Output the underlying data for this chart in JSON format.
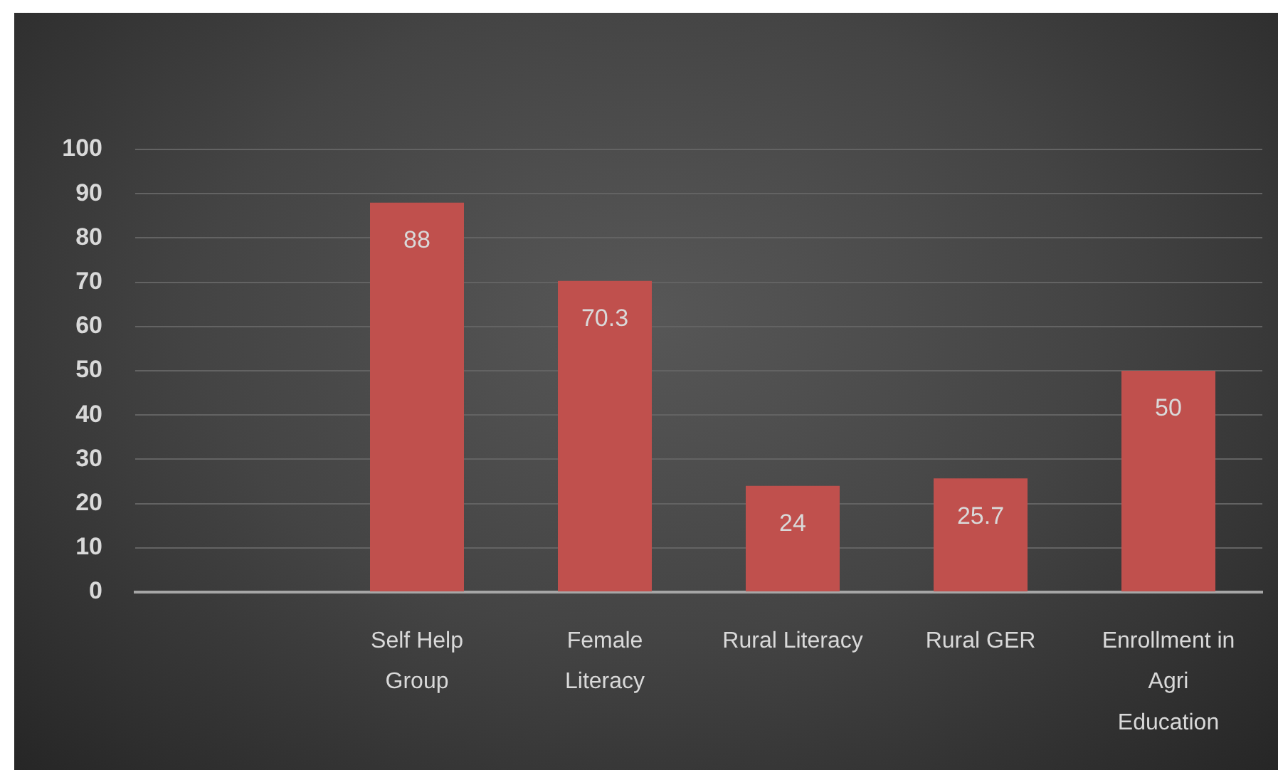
{
  "chart_data": {
    "type": "bar",
    "categories": [
      null,
      "Self Help Group",
      "Female Literacy",
      "Rural Literacy",
      "Rural GER",
      "Enrollment in Agri Education"
    ],
    "values": [
      null,
      88,
      70.3,
      24,
      25.7,
      50
    ],
    "color": "#c0504d",
    "ylim": [
      0,
      100
    ],
    "yticks": [
      0,
      10,
      20,
      30,
      40,
      50,
      60,
      70,
      80,
      90,
      100
    ],
    "grid": "y",
    "data_labels": true
  }
}
